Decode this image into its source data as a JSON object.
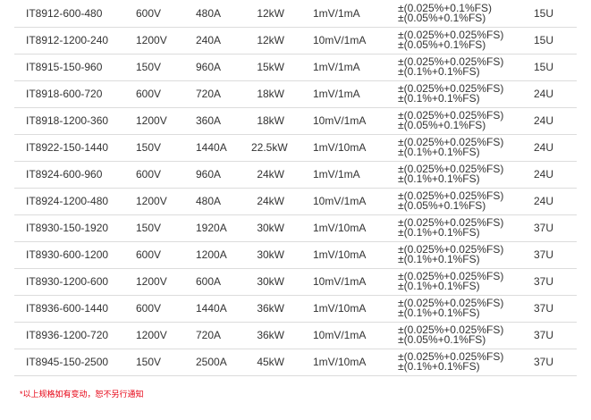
{
  "rows": [
    {
      "model": "IT8912-600-480",
      "voltage": "600V",
      "current": "480A",
      "power": "12kW",
      "resolution": "1mV/1mA",
      "accuracy_v": "±(0.025%+0.1%FS)",
      "accuracy_i": "±(0.05%+0.1%FS)",
      "size": "15U"
    },
    {
      "model": "IT8912-1200-240",
      "voltage": "1200V",
      "current": "240A",
      "power": "12kW",
      "resolution": "10mV/1mA",
      "accuracy_v": "±(0.025%+0.025%FS)",
      "accuracy_i": "±(0.05%+0.1%FS)",
      "size": "15U"
    },
    {
      "model": "IT8915-150-960",
      "voltage": "150V",
      "current": "960A",
      "power": "15kW",
      "resolution": "1mV/1mA",
      "accuracy_v": "±(0.025%+0.025%FS)",
      "accuracy_i": "±(0.1%+0.1%FS)",
      "size": "15U"
    },
    {
      "model": "IT8918-600-720",
      "voltage": "600V",
      "current": "720A",
      "power": "18kW",
      "resolution": "1mV/1mA",
      "accuracy_v": "±(0.025%+0.025%FS)",
      "accuracy_i": "±(0.1%+0.1%FS)",
      "size": "24U"
    },
    {
      "model": "IT8918-1200-360",
      "voltage": "1200V",
      "current": "360A",
      "power": "18kW",
      "resolution": "10mV/1mA",
      "accuracy_v": "±(0.025%+0.025%FS)",
      "accuracy_i": "±(0.05%+0.1%FS)",
      "size": "24U"
    },
    {
      "model": "IT8922-150-1440",
      "voltage": "150V",
      "current": "1440A",
      "power": "22.5kW",
      "resolution": "1mV/10mA",
      "accuracy_v": "±(0.025%+0.025%FS)",
      "accuracy_i": "±(0.1%+0.1%FS)",
      "size": "24U"
    },
    {
      "model": "IT8924-600-960",
      "voltage": "600V",
      "current": "960A",
      "power": "24kW",
      "resolution": "1mV/1mA",
      "accuracy_v": "±(0.025%+0.025%FS)",
      "accuracy_i": "±(0.1%+0.1%FS)",
      "size": "24U"
    },
    {
      "model": "IT8924-1200-480",
      "voltage": "1200V",
      "current": "480A",
      "power": "24kW",
      "resolution": "10mV/1mA",
      "accuracy_v": "±(0.025%+0.025%FS)",
      "accuracy_i": "±(0.05%+0.1%FS)",
      "size": "24U"
    },
    {
      "model": "IT8930-150-1920",
      "voltage": "150V",
      "current": "1920A",
      "power": "30kW",
      "resolution": "1mV/10mA",
      "accuracy_v": "±(0.025%+0.025%FS)",
      "accuracy_i": "±(0.1%+0.1%FS)",
      "size": "37U"
    },
    {
      "model": "IT8930-600-1200",
      "voltage": "600V",
      "current": "1200A",
      "power": "30kW",
      "resolution": "1mV/10mA",
      "accuracy_v": "±(0.025%+0.025%FS)",
      "accuracy_i": "±(0.1%+0.1%FS)",
      "size": "37U"
    },
    {
      "model": "IT8930-1200-600",
      "voltage": "1200V",
      "current": "600A",
      "power": "30kW",
      "resolution": "10mV/1mA",
      "accuracy_v": "±(0.025%+0.025%FS)",
      "accuracy_i": "±(0.1%+0.1%FS)",
      "size": "37U"
    },
    {
      "model": "IT8936-600-1440",
      "voltage": "600V",
      "current": "1440A",
      "power": "36kW",
      "resolution": "1mV/10mA",
      "accuracy_v": "±(0.025%+0.025%FS)",
      "accuracy_i": "±(0.1%+0.1%FS)",
      "size": "37U"
    },
    {
      "model": "IT8936-1200-720",
      "voltage": "1200V",
      "current": "720A",
      "power": "36kW",
      "resolution": "10mV/1mA",
      "accuracy_v": "±(0.025%+0.025%FS)",
      "accuracy_i": "±(0.05%+0.1%FS)",
      "size": "37U"
    },
    {
      "model": "IT8945-150-2500",
      "voltage": "150V",
      "current": "2500A",
      "power": "45kW",
      "resolution": "1mV/10mA",
      "accuracy_v": "±(0.025%+0.025%FS)",
      "accuracy_i": "±(0.1%+0.1%FS)",
      "size": "37U"
    }
  ],
  "footnote": "*以上规格如有变动，恕不另行通知",
  "colors": {
    "footnote": "#e60012",
    "divider": "#dcdcdc",
    "text": "#333333"
  }
}
